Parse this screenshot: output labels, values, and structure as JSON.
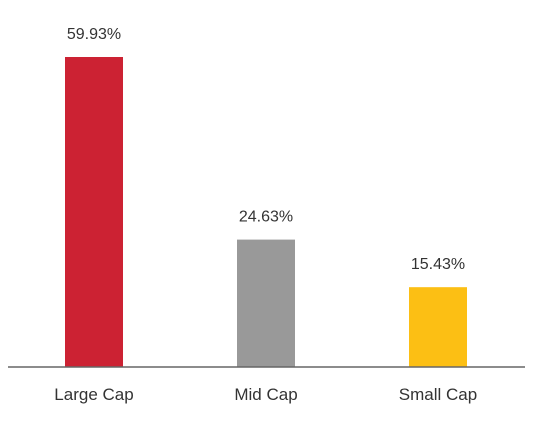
{
  "chart_data": {
    "type": "bar",
    "categories": [
      "Large Cap",
      "Mid Cap",
      "Small Cap"
    ],
    "values": [
      59.93,
      24.63,
      15.43
    ],
    "data_labels": [
      "59.93%",
      "24.63%",
      "15.43%"
    ],
    "colors": [
      "#cc2233",
      "#999999",
      "#fcbf14"
    ],
    "axis_color": "#666666",
    "ylim": [
      0,
      59.93
    ],
    "grid": false,
    "legend": "none"
  }
}
